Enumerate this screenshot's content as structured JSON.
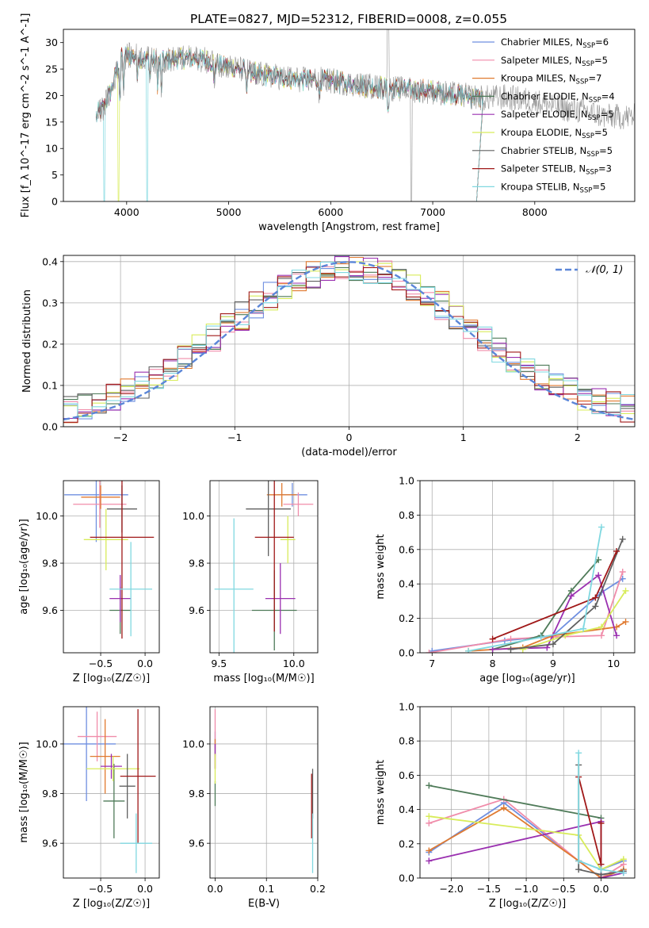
{
  "colors": {
    "chabrier_miles": "#6f8fe0",
    "salpeter_miles": "#f08caa",
    "kroupa_miles": "#e07a30",
    "chabrier_elodie": "#4e7a58",
    "salpeter_elodie": "#9a30b0",
    "kroupa_elodie": "#d8ec5a",
    "chabrier_stelib": "#606060",
    "salpeter_stelib": "#a01818",
    "kroupa_stelib": "#80d8e0",
    "normal": "#5b86d8",
    "grid": "#b0b0b0"
  },
  "chart_data": [
    {
      "id": "spectrum",
      "type": "line",
      "title": "PLATE=0827, MJD=52312, FIBERID=0008, z=0.055",
      "xlabel": "wavelength [Angstrom, rest frame]",
      "ylabel": "Flux [f_λ 10^-17 erg cm^-2 s^-1 A^-1]",
      "xlim": [
        3380,
        8980
      ],
      "ylim": [
        0,
        32.5
      ],
      "xticks": [
        4000,
        5000,
        6000,
        7000,
        8000
      ],
      "yticks": [
        0,
        5,
        10,
        15,
        20,
        25,
        30
      ],
      "grid": false,
      "legend_position": "top-right",
      "legend": [
        {
          "label": "Chabrier MILES, N",
          "sub": "SSP",
          "eq": "=6",
          "color": "chabrier_miles"
        },
        {
          "label": "Salpeter MILES, N",
          "sub": "SSP",
          "eq": "=5",
          "color": "salpeter_miles"
        },
        {
          "label": "Kroupa MILES, N",
          "sub": "SSP",
          "eq": "=7",
          "color": "kroupa_miles"
        },
        {
          "label": "Chabrier ELODIE, N",
          "sub": "SSP",
          "eq": "=4",
          "color": "chabrier_elodie"
        },
        {
          "label": "Salpeter ELODIE, N",
          "sub": "SSP",
          "eq": "=5",
          "color": "salpeter_elodie"
        },
        {
          "label": "Kroupa ELODIE, N",
          "sub": "SSP",
          "eq": "=5",
          "color": "kroupa_elodie"
        },
        {
          "label": "Chabrier STELIB, N",
          "sub": "SSP",
          "eq": "=5",
          "color": "chabrier_stelib"
        },
        {
          "label": "Salpeter STELIB, N",
          "sub": "SSP",
          "eq": "=3",
          "color": "salpeter_stelib"
        },
        {
          "label": "Kroupa STELIB, N",
          "sub": "SSP",
          "eq": "=5",
          "color": "kroupa_stelib"
        }
      ],
      "continuum": [
        [
          3700,
          16
        ],
        [
          3780,
          18
        ],
        [
          3850,
          21
        ],
        [
          3900,
          24.5
        ],
        [
          3950,
          27
        ],
        [
          4000,
          27.5
        ],
        [
          4100,
          27.5
        ],
        [
          4300,
          26.5
        ],
        [
          4500,
          27
        ],
        [
          4700,
          27
        ],
        [
          4900,
          26
        ],
        [
          5100,
          25
        ],
        [
          5300,
          24
        ],
        [
          5500,
          23.5
        ],
        [
          5700,
          23
        ],
        [
          5900,
          23
        ],
        [
          6100,
          22.5
        ],
        [
          6300,
          22
        ],
        [
          6500,
          21.5
        ],
        [
          6700,
          21.2
        ],
        [
          6900,
          21
        ],
        [
          7100,
          20.5
        ],
        [
          7300,
          20
        ],
        [
          7500,
          19.5
        ],
        [
          7700,
          19.7
        ],
        [
          7900,
          19.2
        ],
        [
          8100,
          18.5
        ],
        [
          8300,
          17.5
        ],
        [
          8500,
          17
        ],
        [
          8700,
          16
        ]
      ]
    },
    {
      "id": "residuals",
      "type": "bar",
      "xlabel": "(data-model)/error",
      "ylabel": "Normed distribution",
      "xlim": [
        -2.5,
        2.5
      ],
      "ylim": [
        0,
        0.415
      ],
      "xticks": [
        -2,
        -1,
        0,
        1,
        2
      ],
      "yticks": [
        0.0,
        0.1,
        0.2,
        0.3,
        0.4
      ],
      "grid": true,
      "legend_position": "top-right",
      "legend": [
        {
          "label": "𝒩(0, 1)",
          "color": "normal"
        }
      ],
      "bin_edges_start": -2.5,
      "bin_width": 0.125,
      "normal_curve": {
        "mean": 0,
        "sigma": 1
      }
    },
    {
      "id": "age_vs_z",
      "type": "scatter",
      "xlabel": "Z [log₁₀(Z/Z☉)]",
      "ylabel": "age  [log₁₀(age/yr)]",
      "xlim": [
        -0.92,
        0.16
      ],
      "ylim": [
        9.42,
        10.15
      ],
      "xticks": [
        -0.5,
        0.0
      ],
      "yticks": [
        9.6,
        9.8,
        10.0
      ],
      "grid": true,
      "points": [
        {
          "x": -0.55,
          "y": 10.09,
          "xerr": 0.36,
          "yerr": 0.2,
          "color": "chabrier_miles"
        },
        {
          "x": -0.51,
          "y": 10.05,
          "xerr": 0.3,
          "yerr": 0.1,
          "color": "salpeter_miles"
        },
        {
          "x": -0.5,
          "y": 10.08,
          "xerr": 0.22,
          "yerr": 0.05,
          "color": "kroupa_miles"
        },
        {
          "x": -0.28,
          "y": 9.6,
          "xerr": 0.12,
          "yerr": 0.1,
          "color": "chabrier_elodie"
        },
        {
          "x": -0.28,
          "y": 9.65,
          "xerr": 0.12,
          "yerr": 0.1,
          "color": "salpeter_elodie"
        },
        {
          "x": -0.44,
          "y": 9.9,
          "xerr": 0.25,
          "yerr": 0.13,
          "color": "kroupa_elodie"
        },
        {
          "x": -0.26,
          "y": 10.03,
          "xerr": 0.17,
          "yerr": 0.1,
          "color": "chabrier_stelib"
        },
        {
          "x": -0.26,
          "y": 9.91,
          "xerr": 0.36,
          "yerr": 0.43,
          "color": "salpeter_stelib"
        },
        {
          "x": -0.16,
          "y": 9.69,
          "xerr": 0.24,
          "yerr": 0.2,
          "color": "kroupa_stelib"
        }
      ]
    },
    {
      "id": "age_vs_mass",
      "type": "scatter",
      "xlabel": "mass [log₁₀(M/M☉)]",
      "ylabel": "",
      "xlim": [
        9.44,
        10.16
      ],
      "ylim": [
        9.42,
        10.15
      ],
      "xticks": [
        9.5,
        10.0
      ],
      "yticks": [
        9.6,
        9.8,
        10.0
      ],
      "grid": true,
      "points": [
        {
          "x": 9.99,
          "y": 10.09,
          "xerr": 0.1,
          "yerr": 0.05,
          "color": "chabrier_miles"
        },
        {
          "x": 10.03,
          "y": 10.05,
          "xerr": 0.1,
          "yerr": 0.05,
          "color": "salpeter_miles"
        },
        {
          "x": 9.92,
          "y": 10.09,
          "xerr": 0.1,
          "yerr": 0.05,
          "color": "kroupa_miles"
        },
        {
          "x": 9.87,
          "y": 9.6,
          "xerr": 0.15,
          "yerr": 0.17,
          "color": "chabrier_elodie"
        },
        {
          "x": 9.91,
          "y": 9.65,
          "xerr": 0.1,
          "yerr": 0.15,
          "color": "salpeter_elodie"
        },
        {
          "x": 9.96,
          "y": 9.9,
          "xerr": 0.05,
          "yerr": 0.1,
          "color": "kroupa_elodie"
        },
        {
          "x": 9.83,
          "y": 10.03,
          "xerr": 0.15,
          "yerr": 0.2,
          "color": "chabrier_stelib"
        },
        {
          "x": 9.87,
          "y": 9.91,
          "xerr": 0.13,
          "yerr": 0.4,
          "color": "salpeter_stelib"
        },
        {
          "x": 9.6,
          "y": 9.69,
          "xerr": 0.13,
          "yerr": 0.3,
          "color": "kroupa_stelib"
        }
      ]
    },
    {
      "id": "weight_vs_age",
      "type": "line",
      "xlabel": "age  [log₁₀(age/yr)]",
      "ylabel": "mass weight",
      "xlim": [
        6.8,
        10.35
      ],
      "ylim": [
        0,
        1
      ],
      "xticks": [
        7,
        8,
        9,
        10
      ],
      "yticks": [
        0.0,
        0.2,
        0.4,
        0.6,
        0.8,
        1.0
      ],
      "grid": true,
      "series": [
        {
          "color": "chabrier_miles",
          "x": [
            7.0,
            8.2,
            9.0,
            9.8,
            10.15
          ],
          "y": [
            0.01,
            0.07,
            0.1,
            0.35,
            0.43
          ]
        },
        {
          "color": "salpeter_miles",
          "x": [
            6.95,
            8.3,
            8.8,
            9.8,
            10.15
          ],
          "y": [
            0.0,
            0.08,
            0.09,
            0.1,
            0.47
          ]
        },
        {
          "color": "kroupa_miles",
          "x": [
            7.6,
            8.5,
            9.0,
            10.05,
            10.2
          ],
          "y": [
            0.01,
            0.03,
            0.1,
            0.15,
            0.18
          ]
        },
        {
          "color": "chabrier_elodie",
          "x": [
            8.0,
            8.8,
            9.3,
            9.75
          ],
          "y": [
            0.02,
            0.1,
            0.36,
            0.54
          ]
        },
        {
          "color": "salpeter_elodie",
          "x": [
            8.0,
            8.9,
            9.3,
            9.75,
            10.05
          ],
          "y": [
            0.02,
            0.03,
            0.33,
            0.45,
            0.1
          ]
        },
        {
          "color": "kroupa_elodie",
          "x": [
            8.5,
            9.2,
            9.8,
            10.2
          ],
          "y": [
            0.02,
            0.1,
            0.15,
            0.36
          ]
        },
        {
          "color": "chabrier_stelib",
          "x": [
            8.3,
            9.0,
            9.7,
            10.15
          ],
          "y": [
            0.02,
            0.05,
            0.27,
            0.66
          ]
        },
        {
          "color": "salpeter_stelib",
          "x": [
            8.0,
            9.7,
            10.05
          ],
          "y": [
            0.08,
            0.32,
            0.59
          ]
        },
        {
          "color": "kroupa_stelib",
          "x": [
            7.6,
            8.8,
            9.5,
            9.8
          ],
          "y": [
            0.01,
            0.09,
            0.14,
            0.73
          ]
        }
      ]
    },
    {
      "id": "mass_vs_z",
      "type": "scatter",
      "xlabel": "Z [log₁₀(Z/Z☉)]",
      "ylabel": "mass [log₁₀(M/M☉)]",
      "xlim": [
        -0.92,
        0.16
      ],
      "ylim": [
        9.46,
        10.15
      ],
      "xticks": [
        -0.5,
        0.0
      ],
      "yticks": [
        9.6,
        9.8,
        10.0
      ],
      "grid": true,
      "points": [
        {
          "x": -0.66,
          "y": 10.0,
          "xerr": 0.33,
          "yerr": 0.23,
          "color": "chabrier_miles"
        },
        {
          "x": -0.54,
          "y": 10.03,
          "xerr": 0.22,
          "yerr": 0.1,
          "color": "salpeter_miles"
        },
        {
          "x": -0.45,
          "y": 9.95,
          "xerr": 0.17,
          "yerr": 0.15,
          "color": "kroupa_miles"
        },
        {
          "x": -0.35,
          "y": 9.77,
          "xerr": 0.12,
          "yerr": 0.15,
          "color": "chabrier_elodie"
        },
        {
          "x": -0.38,
          "y": 9.91,
          "xerr": 0.12,
          "yerr": 0.05,
          "color": "salpeter_elodie"
        },
        {
          "x": -0.36,
          "y": 9.9,
          "xerr": 0.3,
          "yerr": 0.05,
          "color": "kroupa_elodie"
        },
        {
          "x": -0.2,
          "y": 9.83,
          "xerr": 0.09,
          "yerr": 0.13,
          "color": "chabrier_stelib"
        },
        {
          "x": -0.08,
          "y": 9.87,
          "xerr": 0.2,
          "yerr": 0.27,
          "color": "salpeter_stelib"
        },
        {
          "x": -0.1,
          "y": 9.6,
          "xerr": 0.18,
          "yerr": 0.12,
          "color": "kroupa_stelib"
        }
      ]
    },
    {
      "id": "mass_vs_ebv",
      "type": "scatter",
      "xlabel": "E(B-V)",
      "ylabel": "",
      "xlim": [
        -0.01,
        0.2
      ],
      "ylim": [
        9.46,
        10.15
      ],
      "xticks": [
        0.0,
        0.1,
        0.2
      ],
      "yticks": [
        9.6,
        9.8,
        10.0
      ],
      "grid": true,
      "points": [
        {
          "x": 0.0,
          "y": 10.0,
          "xerr": 0,
          "yerr": 0.05,
          "color": "chabrier_miles"
        },
        {
          "x": 0.0,
          "y": 10.06,
          "xerr": 0,
          "yerr": 0.08,
          "color": "salpeter_miles"
        },
        {
          "x": 0.0,
          "y": 9.96,
          "xerr": 0,
          "yerr": 0.06,
          "color": "kroupa_miles"
        },
        {
          "x": 0.0,
          "y": 9.8,
          "xerr": 0,
          "yerr": 0.05,
          "color": "chabrier_elodie"
        },
        {
          "x": 0.0,
          "y": 9.95,
          "xerr": 0,
          "yerr": 0.05,
          "color": "salpeter_elodie"
        },
        {
          "x": 0.0,
          "y": 9.9,
          "xerr": 0,
          "yerr": 0.06,
          "color": "kroupa_elodie"
        },
        {
          "x": 0.19,
          "y": 9.8,
          "xerr": 0,
          "yerr": 0.1,
          "color": "chabrier_stelib"
        },
        {
          "x": 0.188,
          "y": 9.75,
          "xerr": 0,
          "yerr": 0.13,
          "color": "salpeter_stelib"
        },
        {
          "x": 0.19,
          "y": 9.6,
          "xerr": 0,
          "yerr": 0.12,
          "color": "kroupa_stelib"
        }
      ]
    },
    {
      "id": "weight_vs_z",
      "type": "line",
      "xlabel": "Z [log₁₀(Z/Z☉)]",
      "ylabel": "mass weight",
      "xlim": [
        -2.42,
        0.45
      ],
      "ylim": [
        0,
        1
      ],
      "xticks": [
        -2.0,
        -1.5,
        -1.0,
        -0.5,
        0.0
      ],
      "yticks": [
        0.0,
        0.2,
        0.4,
        0.6,
        0.8,
        1.0
      ],
      "grid": true,
      "series": [
        {
          "color": "chabrier_miles",
          "x": [
            -2.3,
            -1.3,
            -0.3,
            0.0,
            0.3
          ],
          "y": [
            0.15,
            0.44,
            0.1,
            0.05,
            0.1
          ]
        },
        {
          "color": "salpeter_miles",
          "x": [
            -2.3,
            -1.3,
            -0.3,
            0.0,
            0.3
          ],
          "y": [
            0.32,
            0.46,
            0.1,
            0.0,
            0.08
          ]
        },
        {
          "color": "kroupa_miles",
          "x": [
            -2.3,
            -1.3,
            -0.3,
            0.0,
            0.3
          ],
          "y": [
            0.16,
            0.41,
            0.1,
            0.0,
            0.05
          ]
        },
        {
          "color": "chabrier_elodie",
          "x": [
            -2.3,
            0.0
          ],
          "y": [
            0.54,
            0.35
          ]
        },
        {
          "color": "salpeter_elodie",
          "x": [
            -2.3,
            0.0,
            0.0,
            0.3
          ],
          "y": [
            0.1,
            0.33,
            0.0,
            0.03
          ]
        },
        {
          "color": "kroupa_elodie",
          "x": [
            -2.3,
            -0.3,
            0.0,
            0.3
          ],
          "y": [
            0.36,
            0.25,
            0.05,
            0.11
          ]
        },
        {
          "color": "chabrier_stelib",
          "x": [
            -0.3,
            -0.3,
            0.0,
            0.3
          ],
          "y": [
            0.66,
            0.05,
            0.02,
            0.04
          ]
        },
        {
          "color": "salpeter_stelib",
          "x": [
            -0.3,
            0.0,
            0.0
          ],
          "y": [
            0.59,
            0.08,
            0.32
          ]
        },
        {
          "color": "kroupa_stelib",
          "x": [
            -0.3,
            -0.3,
            0.0,
            0.3
          ],
          "y": [
            0.73,
            0.1,
            0.05,
            0.03
          ]
        }
      ]
    }
  ]
}
